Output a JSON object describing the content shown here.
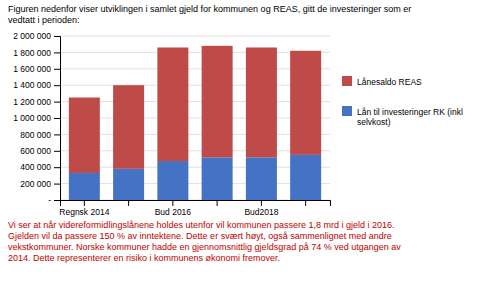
{
  "chart_data": {
    "type": "bar",
    "stacked": true,
    "grid": true,
    "title": "Figuren nedenfor viser utviklingen i samlet gjeld for kommunen og REAS, gitt de investeringer som er\nvedtatt i perioden:",
    "annotations": [
      {
        "text": "Vi ser at når videreformidlingslånene holdes utenfor vil kommunen passere 1,8 mrd i gjeld i 2016.\nGjelden vil da passere 150 % av inntektene. Dette er svært høyt, også sammenlignet med andre\nvekstkommuner. Norske kommuner hadde en gjennomsnittlig gjeldsgrad på 74 % ved utgangen av\n2014. Dette representerer en risiko i kommunens økonomi fremover.",
        "color": "#C00000"
      }
    ],
    "categories": [
      "Regnsk 2014",
      null,
      "Bud 2016",
      null,
      "Bud2018",
      null
    ],
    "series": [
      {
        "name": "Lån til investeringer RK (inkl\nselvkost)",
        "color": "#4472C4",
        "values": [
          330000,
          380000,
          475000,
          520000,
          520000,
          550000
        ]
      },
      {
        "name": "Lånesaldo REAS",
        "color": "#BE4B48",
        "values": [
          920000,
          1020000,
          1385000,
          1360000,
          1340000,
          1270000
        ]
      }
    ],
    "ylim": [
      0,
      2000000
    ],
    "yticks": [
      {
        "value": 0,
        "label": "-"
      },
      {
        "value": 200000,
        "label": "200 000"
      },
      {
        "value": 400000,
        "label": "400 000"
      },
      {
        "value": 600000,
        "label": "600 000"
      },
      {
        "value": 800000,
        "label": "800 000"
      },
      {
        "value": 1000000,
        "label": "1 000 000"
      },
      {
        "value": 1200000,
        "label": "1 200 000"
      },
      {
        "value": 1400000,
        "label": "1 400 000"
      },
      {
        "value": 1600000,
        "label": "1 600 000"
      },
      {
        "value": 1800000,
        "label": "1 800 000"
      },
      {
        "value": 2000000,
        "label": "2 000 000"
      }
    ]
  }
}
